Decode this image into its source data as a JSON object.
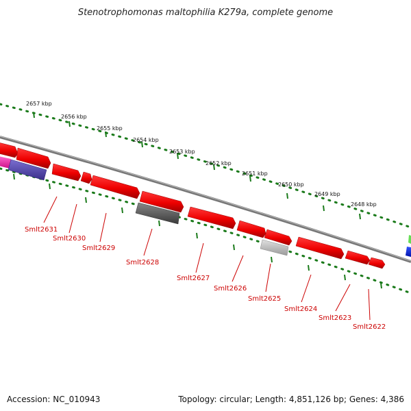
{
  "title": "Stenotrophomonas maltophilia K279a, complete genome",
  "ruler_labels": [
    "2657 kbp",
    "2656 kbp",
    "2655 kbp",
    "2654 kbp",
    "2653 kbp",
    "2652 kbp",
    "2651 kbp",
    "2650 kbp",
    "2649 kbp",
    "2648 kbp"
  ],
  "gene_labels": [
    "Smlt2631",
    "Smlt2630",
    "Smlt2629",
    "Smlt2628",
    "Smlt2627",
    "Smlt2626",
    "Smlt2625",
    "Smlt2624",
    "Smlt2623",
    "Smlt2622"
  ],
  "footer": {
    "accession": "Accession: NC_010943",
    "summary": "Topology: circular; Length: 4,851,126 bp; Genes: 4,386"
  },
  "colors": {
    "gene_red": "#ee1111",
    "tick_green": "#1a7a1a",
    "backbone_gray": "#888888",
    "label_red": "#cc0000"
  }
}
